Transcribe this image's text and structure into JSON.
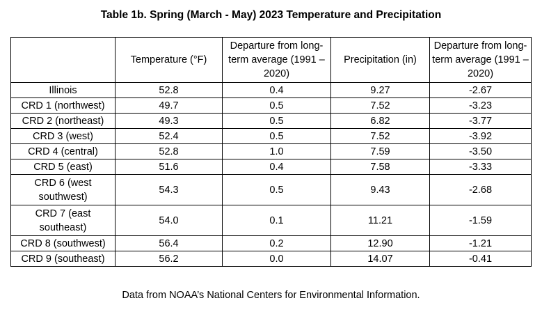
{
  "title": "Table 1b.  Spring (March - May) 2023 Temperature and Precipitation",
  "headers": [
    "",
    "Temperature (°F)",
    "Departure from long-term average (1991 – 2020)",
    "Precipitation (in)",
    "Departure from long-term average (1991 – 2020)"
  ],
  "rows": [
    [
      "Illinois",
      "52.8",
      "0.4",
      "9.27",
      "-2.67"
    ],
    [
      "CRD 1 (northwest)",
      "49.7",
      "0.5",
      "7.52",
      "-3.23"
    ],
    [
      "CRD 2 (northeast)",
      "49.3",
      "0.5",
      "6.82",
      "-3.77"
    ],
    [
      "CRD 3 (west)",
      "52.4",
      "0.5",
      "7.52",
      "-3.92"
    ],
    [
      "CRD 4 (central)",
      "52.8",
      "1.0",
      "7.59",
      "-3.50"
    ],
    [
      "CRD 5 (east)",
      "51.6",
      "0.4",
      "7.58",
      "-3.33"
    ],
    [
      "CRD 6 (west southwest)",
      "54.3",
      "0.5",
      "9.43",
      "-2.68"
    ],
    [
      "CRD 7 (east southeast)",
      "54.0",
      "0.1",
      "11.21",
      "-1.59"
    ],
    [
      "CRD 8 (southwest)",
      "56.4",
      "0.2",
      "12.90",
      "-1.21"
    ],
    [
      "CRD 9 (southeast)",
      "56.2",
      "0.0",
      "14.07",
      "-0.41"
    ]
  ],
  "footer": "Data from NOAA’s National Centers for Environmental Information."
}
